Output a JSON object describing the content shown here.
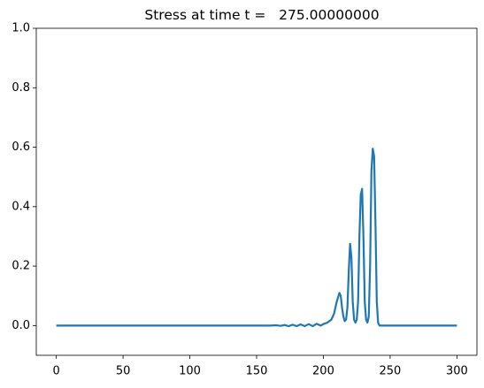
{
  "chart_data": {
    "type": "line",
    "title": "Stress at time t =   275.00000000",
    "x": [
      0,
      160,
      165,
      168,
      171,
      174,
      177,
      180,
      183,
      186,
      189,
      192,
      195,
      198,
      200,
      203,
      206,
      208,
      210,
      212,
      213,
      214,
      215,
      216,
      217,
      218,
      219,
      220,
      221,
      222,
      223,
      224,
      225,
      226,
      227,
      228,
      229,
      230,
      231,
      232,
      233,
      234,
      235,
      236,
      237,
      238,
      239,
      240,
      241,
      242,
      300
    ],
    "values": [
      0,
      0,
      0.001,
      -0.001,
      0.002,
      -0.002,
      0.003,
      -0.002,
      0.004,
      -0.002,
      0.005,
      -0.002,
      0.006,
      0,
      0.005,
      0.01,
      0.02,
      0.04,
      0.08,
      0.11,
      0.1,
      0.06,
      0.03,
      0.015,
      0.02,
      0.06,
      0.18,
      0.275,
      0.23,
      0.08,
      0.02,
      0.01,
      0.02,
      0.08,
      0.3,
      0.44,
      0.46,
      0.3,
      0.08,
      0.02,
      0.01,
      0.03,
      0.2,
      0.52,
      0.595,
      0.57,
      0.35,
      0.08,
      0.01,
      0,
      0
    ],
    "color": "#1f77b4",
    "xlim": [
      -15,
      315
    ],
    "xticks": [
      0,
      50,
      100,
      150,
      200,
      250,
      300
    ],
    "ylim": [
      -0.1,
      1.0
    ],
    "yticks": [
      {
        "value": 0,
        "label": "0.0"
      },
      0.2,
      0.4,
      0.6,
      0.8,
      {
        "value": 1.0,
        "label": "1.0"
      }
    ],
    "grid": false
  }
}
